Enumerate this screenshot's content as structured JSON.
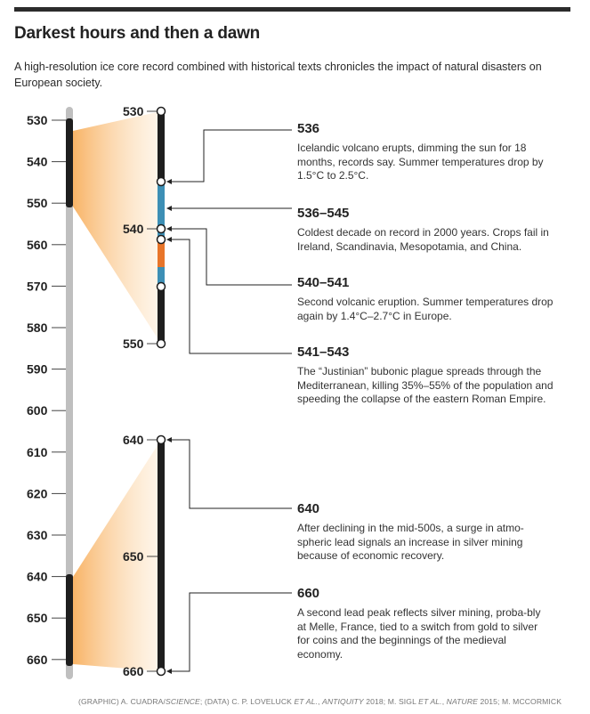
{
  "title": "Darkest hours and then a dawn",
  "subtitle": "A high-resolution ice core record combined with historical texts chronicles the impact of natural disasters on European society.",
  "credit": {
    "p1": "(GRAPHIC) A. CUADRA/",
    "p2": "SCIENCE",
    "p3": "; (DATA) C. P. LOVELUCK ",
    "p4": "ET AL.",
    "p5": ", ",
    "p6": "ANTIQUITY",
    "p7": " 2018; M. SIGL ",
    "p8": "ET AL.",
    "p9": ", ",
    "p10": "NATURE",
    "p11": " 2015; M. MCCORMICK"
  },
  "colors": {
    "bar_black": "#1e1e1e",
    "bar_gray": "#bfbfbf",
    "blue_period": "#3d8fb5",
    "orange_period": "#e8752a",
    "wedge": "#f7a64b"
  },
  "main_scale": {
    "labels": [
      "530",
      "540",
      "550",
      "560",
      "570",
      "580",
      "590",
      "600",
      "610",
      "620",
      "630",
      "640",
      "650",
      "660"
    ]
  },
  "zoom_top": {
    "labels": [
      "530",
      "540",
      "550"
    ]
  },
  "zoom_bottom": {
    "labels": [
      "640",
      "650",
      "660"
    ]
  },
  "annotations": [
    {
      "year": "536",
      "text": "Icelandic volcano erupts, dimming the sun for 18 months, records say. Summer temperatures drop by 1.5°C to 2.5°C."
    },
    {
      "year": "536–545",
      "text": "Coldest decade on record in 2000 years. Crops fail in Ireland, Scandinavia, Mesopotamia, and China."
    },
    {
      "year": "540–541",
      "text": "Second volcanic eruption. Summer temperatures drop again by 1.4°C–2.7°C in Europe."
    },
    {
      "year": "541–543",
      "text": "The “Justinian” bubonic plague spreads through the Mediterranean, killing 35%–55% of the population and speeding the collapse of the eastern Roman Empire."
    },
    {
      "year": "640",
      "text": "After declining in the mid-500s, a surge in atmo-spheric lead signals an increase in silver mining because of economic recovery."
    },
    {
      "year": "660",
      "text": "A second lead peak reflects silver mining, proba-bly at Melle, France, tied to a switch from gold to silver for coins and the beginnings of the medieval economy."
    }
  ]
}
